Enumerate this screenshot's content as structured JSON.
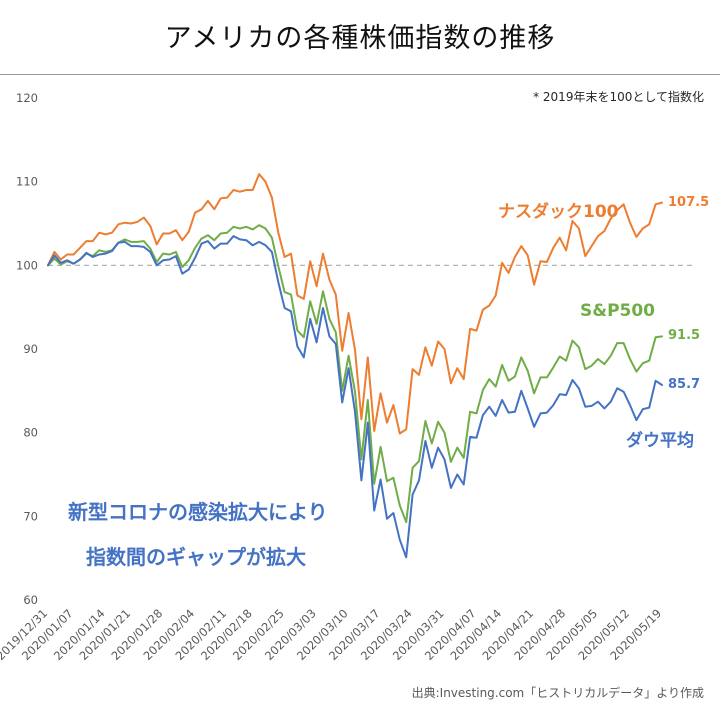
{
  "source": "出典:Investing.com「ヒストリカルデータ」より作成",
  "chart_data": {
    "type": "line",
    "title": "アメリカの各種株価指数の推移",
    "note": "* 2019年末を100として指数化",
    "annotation": {
      "line1": "新型コロナの感染拡大により",
      "line2": "指数間のギャップが拡大"
    },
    "xlabel": "",
    "ylabel": "",
    "ylim": [
      60,
      120
    ],
    "y_ticks": [
      120,
      110,
      100,
      90,
      80,
      70,
      60
    ],
    "baseline": 100,
    "grid": "baseline-only",
    "legend_position": "inline-labels",
    "baseline_color": "#ababab",
    "x": [
      "2019/12/31",
      "2020/01/02",
      "2020/01/03",
      "2020/01/06",
      "2020/01/07",
      "2020/01/08",
      "2020/01/09",
      "2020/01/10",
      "2020/01/13",
      "2020/01/14",
      "2020/01/15",
      "2020/01/16",
      "2020/01/17",
      "2020/01/21",
      "2020/01/22",
      "2020/01/23",
      "2020/01/24",
      "2020/01/27",
      "2020/01/28",
      "2020/01/29",
      "2020/01/30",
      "2020/01/31",
      "2020/02/03",
      "2020/02/04",
      "2020/02/05",
      "2020/02/06",
      "2020/02/07",
      "2020/02/10",
      "2020/02/11",
      "2020/02/12",
      "2020/02/13",
      "2020/02/14",
      "2020/02/18",
      "2020/02/19",
      "2020/02/20",
      "2020/02/21",
      "2020/02/24",
      "2020/02/25",
      "2020/02/26",
      "2020/02/27",
      "2020/02/28",
      "2020/03/02",
      "2020/03/03",
      "2020/03/04",
      "2020/03/05",
      "2020/03/06",
      "2020/03/09",
      "2020/03/10",
      "2020/03/11",
      "2020/03/12",
      "2020/03/13",
      "2020/03/16",
      "2020/03/17",
      "2020/03/18",
      "2020/03/19",
      "2020/03/20",
      "2020/03/23",
      "2020/03/24",
      "2020/03/25",
      "2020/03/26",
      "2020/03/27",
      "2020/03/30",
      "2020/03/31",
      "2020/04/01",
      "2020/04/02",
      "2020/04/03",
      "2020/04/06",
      "2020/04/07",
      "2020/04/08",
      "2020/04/09",
      "2020/04/13",
      "2020/04/14",
      "2020/04/15",
      "2020/04/16",
      "2020/04/17",
      "2020/04/20",
      "2020/04/21",
      "2020/04/22",
      "2020/04/23",
      "2020/04/24",
      "2020/04/27",
      "2020/04/28",
      "2020/04/29",
      "2020/04/30",
      "2020/05/01",
      "2020/05/04",
      "2020/05/05",
      "2020/05/06",
      "2020/05/07",
      "2020/05/08",
      "2020/05/11",
      "2020/05/12",
      "2020/05/13",
      "2020/05/14",
      "2020/05/15",
      "2020/05/18",
      "2020/05/19"
    ],
    "x_tick_labels": [
      "2019/12/31",
      "2020/01/07",
      "2020/01/14",
      "2020/01/21",
      "2020/01/28",
      "2020/02/04",
      "2020/02/11",
      "2020/02/18",
      "2020/02/25",
      "2020/03/03",
      "2020/03/10",
      "2020/03/17",
      "2020/03/24",
      "2020/03/31",
      "2020/04/07",
      "2020/04/14",
      "2020/04/21",
      "2020/04/28",
      "2020/05/05",
      "2020/05/12",
      "2020/05/19"
    ],
    "series": [
      {
        "name": "nasdaq100",
        "label": "ナスダック100",
        "color": "#ED7D31",
        "end_label": "107.5",
        "values": [
          100.0,
          101.6,
          100.7,
          101.3,
          101.3,
          102.1,
          102.9,
          102.9,
          103.9,
          103.7,
          103.9,
          104.9,
          105.1,
          105.0,
          105.2,
          105.7,
          104.7,
          102.5,
          103.8,
          103.8,
          104.2,
          103.0,
          104.0,
          106.3,
          106.7,
          107.7,
          106.7,
          108.0,
          108.1,
          109.0,
          108.8,
          109.0,
          109.0,
          110.9,
          110.0,
          108.1,
          103.9,
          101.0,
          101.4,
          96.4,
          96.0,
          100.5,
          97.5,
          101.4,
          98.3,
          96.5,
          89.8,
          94.3,
          89.9,
          81.6,
          89.0,
          80.2,
          84.7,
          81.2,
          83.3,
          79.9,
          80.4,
          87.6,
          86.9,
          90.2,
          88.0,
          90.9,
          90.0,
          85.9,
          87.7,
          86.4,
          92.4,
          92.2,
          94.7,
          95.2,
          96.4,
          100.3,
          99.1,
          101.0,
          102.3,
          101.2,
          97.7,
          100.5,
          100.4,
          102.1,
          103.3,
          101.8,
          105.3,
          104.4,
          101.1,
          102.3,
          103.5,
          104.1,
          105.6,
          106.6,
          107.3,
          105.1,
          103.4,
          104.4,
          104.9,
          107.3,
          107.5
        ]
      },
      {
        "name": "sp500",
        "label": "S&P500",
        "color": "#70AD47",
        "end_label": "91.5",
        "values": [
          100.0,
          100.8,
          100.1,
          100.5,
          100.2,
          100.7,
          101.4,
          101.1,
          101.8,
          101.6,
          101.8,
          102.7,
          103.1,
          102.8,
          102.8,
          102.9,
          102.0,
          100.4,
          101.4,
          101.3,
          101.6,
          99.8,
          100.6,
          102.1,
          103.2,
          103.6,
          103.0,
          103.8,
          103.9,
          104.6,
          104.4,
          104.6,
          104.3,
          104.8,
          104.4,
          103.3,
          99.9,
          96.8,
          96.5,
          92.2,
          91.4,
          95.7,
          93.0,
          96.9,
          93.6,
          92.0,
          85.0,
          89.2,
          84.9,
          76.8,
          83.9,
          73.9,
          78.3,
          74.2,
          74.6,
          71.3,
          69.3,
          75.8,
          76.6,
          81.4,
          78.7,
          81.3,
          80.0,
          76.5,
          78.2,
          77.0,
          82.5,
          82.3,
          85.1,
          86.4,
          85.5,
          88.1,
          86.2,
          86.7,
          89.0,
          87.4,
          84.7,
          86.6,
          86.6,
          87.8,
          89.1,
          88.6,
          91.0,
          90.2,
          87.6,
          88.0,
          88.8,
          88.2,
          89.2,
          90.7,
          90.7,
          88.8,
          87.3,
          88.3,
          88.6,
          91.4,
          91.5
        ]
      },
      {
        "name": "dow",
        "label": "ダウ平均",
        "color": "#4472C4",
        "end_label": "85.7",
        "values": [
          100.0,
          101.2,
          100.3,
          100.6,
          100.2,
          100.7,
          101.5,
          101.0,
          101.3,
          101.4,
          101.7,
          102.7,
          102.8,
          102.3,
          102.3,
          102.2,
          101.6,
          100.0,
          100.6,
          100.7,
          101.1,
          99.0,
          99.5,
          100.9,
          102.6,
          102.9,
          102.0,
          102.6,
          102.6,
          103.5,
          103.1,
          103.0,
          102.4,
          102.8,
          102.4,
          101.6,
          98.0,
          94.9,
          94.5,
          90.3,
          89.0,
          93.6,
          90.8,
          94.9,
          91.5,
          90.6,
          83.6,
          87.7,
          82.5,
          74.3,
          81.2,
          70.7,
          74.4,
          69.7,
          70.4,
          67.2,
          65.1,
          72.6,
          74.3,
          79.0,
          75.8,
          78.2,
          76.8,
          73.4,
          75.0,
          73.8,
          79.5,
          79.4,
          82.1,
          83.1,
          82.0,
          83.9,
          82.4,
          82.5,
          85.0,
          82.9,
          80.7,
          82.3,
          82.4,
          83.3,
          84.6,
          84.5,
          86.3,
          85.3,
          83.1,
          83.2,
          83.7,
          82.9,
          83.7,
          85.3,
          84.9,
          83.3,
          81.5,
          82.8,
          83.0,
          86.2,
          85.7
        ]
      }
    ]
  }
}
